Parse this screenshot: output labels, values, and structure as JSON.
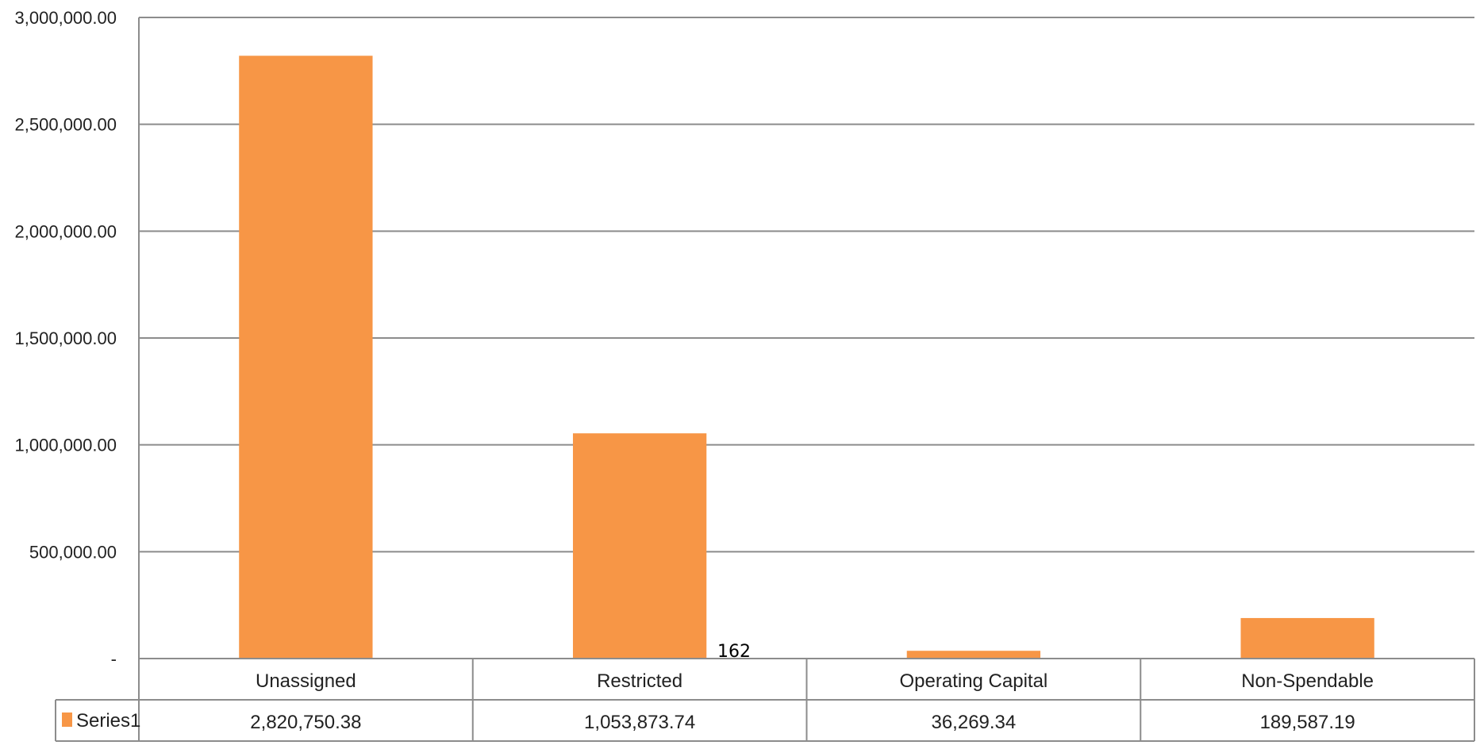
{
  "chart_data": {
    "type": "bar",
    "categories": [
      "Unassigned",
      "Restricted",
      "Operating Capital",
      "Non-Spendable"
    ],
    "series": [
      {
        "name": "Series1",
        "values": [
          2820750.38,
          1053873.74,
          36269.34,
          189587.19
        ],
        "value_labels": [
          "2,820,750.38",
          "1,053,873.74",
          "36,269.34",
          "189,587.19"
        ],
        "color": "#f79646"
      }
    ],
    "ylim": [
      0,
      3000000
    ],
    "yticks": [
      0,
      500000,
      1000000,
      1500000,
      2000000,
      2500000,
      3000000
    ],
    "ytick_labels": [
      "-",
      "500,000.00",
      "1,000,000.00",
      "1,500,000.00",
      "2,000,000.00",
      "2,500,000.00",
      "3,000,000.00"
    ],
    "grid": true,
    "legend": "data-table",
    "annotation": "162",
    "colors": {
      "bar": "#f79646",
      "gridline": "#8c8c8c",
      "table_border": "#8c8c8c",
      "text": "#222222"
    }
  }
}
